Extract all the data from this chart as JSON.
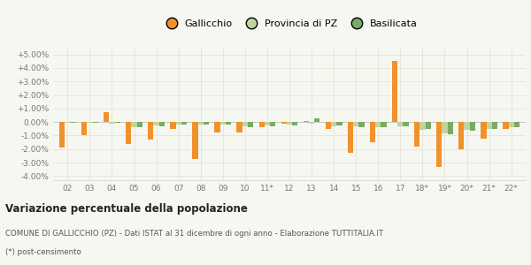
{
  "categories": [
    "02",
    "03",
    "04",
    "05",
    "06",
    "07",
    "08",
    "09",
    "10",
    "11*",
    "12",
    "13",
    "14",
    "15",
    "16",
    "17",
    "18*",
    "19*",
    "20*",
    "21*",
    "22*"
  ],
  "gallicchio": [
    -1.9,
    -1.0,
    0.75,
    -1.6,
    -1.3,
    -0.5,
    -2.7,
    -0.8,
    -0.75,
    -0.4,
    -0.1,
    0.05,
    -0.5,
    -2.3,
    -1.5,
    4.55,
    -1.8,
    -3.3,
    -2.0,
    -1.2,
    -0.5
  ],
  "provincia_pz": [
    -0.05,
    -0.05,
    -0.1,
    -0.35,
    -0.25,
    -0.2,
    -0.2,
    -0.2,
    -0.3,
    -0.25,
    -0.2,
    -0.1,
    -0.3,
    -0.3,
    -0.35,
    -0.3,
    -0.55,
    -0.85,
    -0.6,
    -0.5,
    -0.35
  ],
  "basilicata": [
    -0.05,
    -0.05,
    -0.05,
    -0.35,
    -0.3,
    -0.2,
    -0.2,
    -0.2,
    -0.35,
    -0.3,
    -0.25,
    0.3,
    -0.25,
    -0.35,
    -0.4,
    -0.3,
    -0.5,
    -0.9,
    -0.65,
    -0.5,
    -0.35
  ],
  "color_gallicchio": "#f0922b",
  "color_provincia": "#c2d49e",
  "color_basilicata": "#7aaa68",
  "legend_labels": [
    "Gallicchio",
    "Provincia di PZ",
    "Basilicata"
  ],
  "yticks": [
    -4.0,
    -3.0,
    -2.0,
    -1.0,
    0.0,
    1.0,
    2.0,
    3.0,
    4.0,
    5.0
  ],
  "ytick_labels": [
    "-4.00%",
    "-3.00%",
    "-2.00%",
    "-1.00%",
    "0.00%",
    "+1.00%",
    "+2.00%",
    "+3.00%",
    "+4.00%",
    "+5.00%"
  ],
  "ylim": [
    -4.3,
    5.5
  ],
  "title": "Variazione percentuale della popolazione",
  "subtitle": "COMUNE DI GALLICCHIO (PZ) - Dati ISTAT al 31 dicembre di ogni anno - Elaborazione TUTTITALIA.IT",
  "footnote": "(*) post-censimento",
  "bg_color": "#f7f7f2",
  "grid_color": "#e0e0d8",
  "bar_width": 0.25
}
